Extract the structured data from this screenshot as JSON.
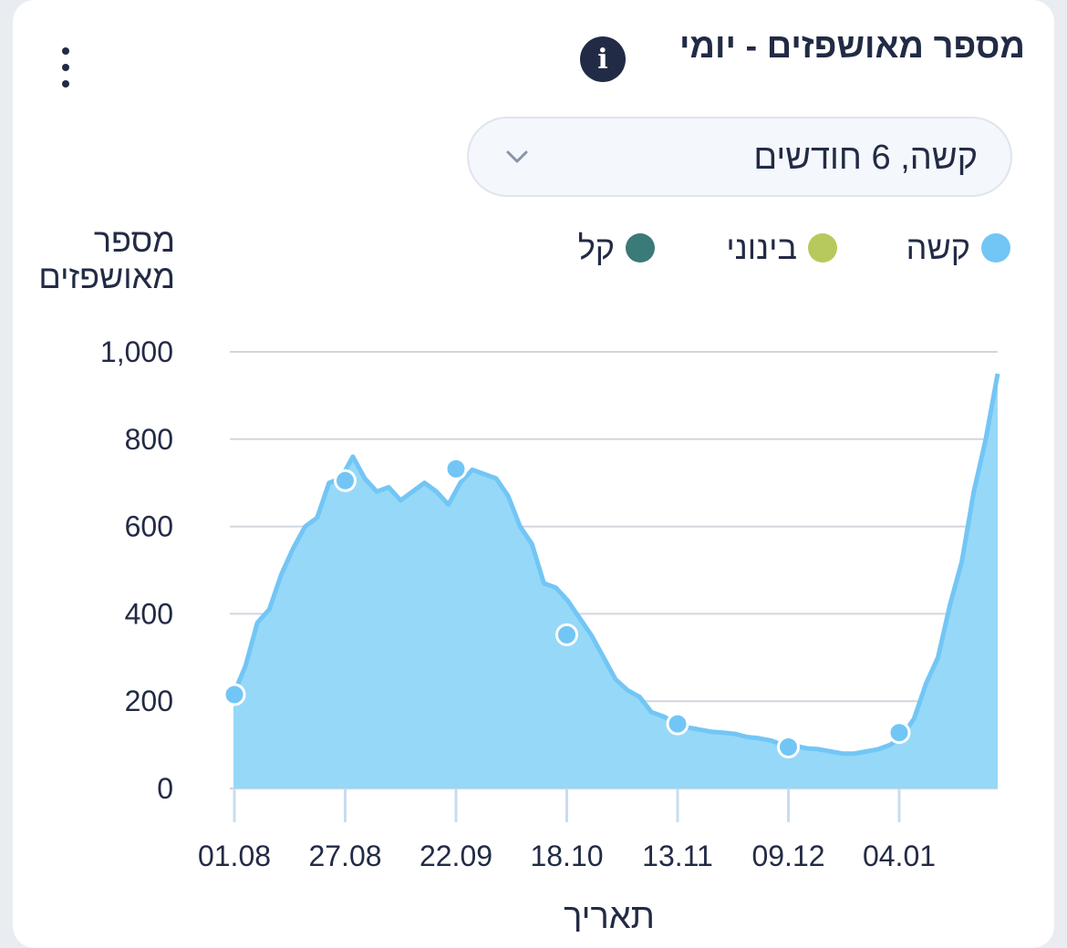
{
  "header": {
    "title": "מספר מאושפזים - יומי",
    "info_icon": "info-icon",
    "more_icon": "more-vertical-icon"
  },
  "filter": {
    "selected": "קשה, 6 חודשים",
    "icon": "chevron-down-icon"
  },
  "legend": [
    {
      "label": "קשה",
      "color": "#72c6f5"
    },
    {
      "label": "בינוני",
      "color": "#b7c95c"
    },
    {
      "label": "קל",
      "color": "#3a7a78"
    }
  ],
  "chart_data": {
    "type": "area",
    "ylabel": "מספר מאושפזים",
    "xlabel": "תאריך",
    "ylim": [
      0,
      1000
    ],
    "yticks": [
      "0",
      "200",
      "400",
      "600",
      "800",
      "1,000"
    ],
    "grid": true,
    "legend_position": "top",
    "x_tick_labels": [
      "01.08",
      "27.08",
      "22.09",
      "18.10",
      "13.11",
      "09.12",
      "04.01"
    ],
    "series": [
      {
        "name": "קשה",
        "color": "#72c6f5",
        "fill": "#96d8f8",
        "values": [
          215,
          280,
          380,
          410,
          490,
          550,
          600,
          620,
          700,
          710,
          760,
          710,
          680,
          690,
          660,
          680,
          700,
          680,
          650,
          700,
          730,
          720,
          710,
          670,
          600,
          560,
          470,
          460,
          430,
          390,
          350,
          300,
          250,
          225,
          210,
          175,
          165,
          150,
          140,
          135,
          130,
          128,
          125,
          118,
          115,
          110,
          100,
          98,
          92,
          90,
          85,
          80,
          80,
          85,
          90,
          100,
          120,
          160,
          240,
          300,
          420,
          520,
          680,
          800,
          950
        ],
        "markers": [
          {
            "label": "01.08",
            "value": 215
          },
          {
            "label": "27.08",
            "value": 705
          },
          {
            "label": "22.09",
            "value": 732
          },
          {
            "label": "18.10",
            "value": 352
          },
          {
            "label": "13.11",
            "value": 148
          },
          {
            "label": "09.12",
            "value": 95
          },
          {
            "label": "04.01",
            "value": 128
          }
        ]
      }
    ]
  }
}
